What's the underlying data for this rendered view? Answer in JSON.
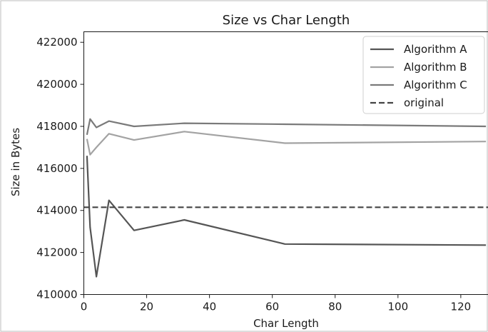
{
  "chart_data": {
    "type": "line",
    "title": "Size vs Char Length",
    "xlabel": "Char Length",
    "ylabel": "Size in Bytes",
    "xlim": [
      0,
      129
    ],
    "ylim": [
      410000,
      422500
    ],
    "xticks": [
      0,
      20,
      40,
      60,
      80,
      100,
      120
    ],
    "yticks": [
      410000,
      412000,
      414000,
      416000,
      418000,
      420000,
      422000
    ],
    "grid": false,
    "legend_position": "top-right",
    "series": [
      {
        "name": "Algorithm A",
        "color": "#555555",
        "style": "solid",
        "x": [
          1,
          2,
          4,
          8,
          16,
          32,
          64,
          128
        ],
        "y": [
          416600,
          413200,
          410850,
          414480,
          413050,
          413550,
          412400,
          412350
        ]
      },
      {
        "name": "Algorithm B",
        "color": "#a3a3a3",
        "style": "solid",
        "x": [
          1,
          2,
          4,
          8,
          16,
          32,
          64,
          128
        ],
        "y": [
          417400,
          416650,
          417000,
          417650,
          417350,
          417750,
          417200,
          417280
        ]
      },
      {
        "name": "Algorithm C",
        "color": "#7a7a7a",
        "style": "solid",
        "x": [
          1,
          2,
          4,
          8,
          16,
          32,
          64,
          128
        ],
        "y": [
          417600,
          418350,
          417950,
          418250,
          418000,
          418150,
          418100,
          418000
        ]
      },
      {
        "name": "original",
        "color": "#444444",
        "style": "dashed",
        "x": [
          0,
          129
        ],
        "y": [
          414150,
          414150
        ]
      }
    ]
  }
}
